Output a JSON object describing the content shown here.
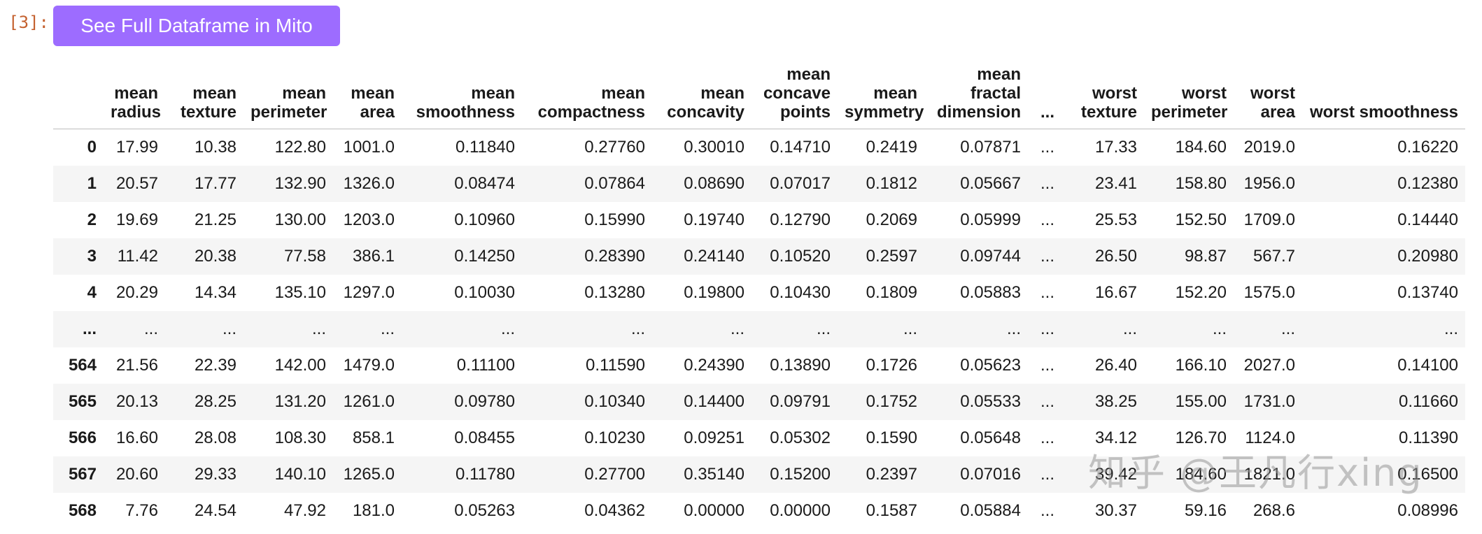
{
  "cell": {
    "prompt": "[3]:",
    "mito_button_label": "See Full Dataframe in Mito"
  },
  "dataframe": {
    "columns": [
      "",
      "mean radius",
      "mean texture",
      "mean perimeter",
      "mean area",
      "mean smoothness",
      "mean compactness",
      "mean concavity",
      "mean concave points",
      "mean symmetry",
      "mean fractal dimension",
      "...",
      "worst texture",
      "worst perimeter",
      "worst area",
      "worst smoothness"
    ],
    "rows": [
      [
        "0",
        "17.99",
        "10.38",
        "122.80",
        "1001.0",
        "0.11840",
        "0.27760",
        "0.30010",
        "0.14710",
        "0.2419",
        "0.07871",
        "...",
        "17.33",
        "184.60",
        "2019.0",
        "0.16220"
      ],
      [
        "1",
        "20.57",
        "17.77",
        "132.90",
        "1326.0",
        "0.08474",
        "0.07864",
        "0.08690",
        "0.07017",
        "0.1812",
        "0.05667",
        "...",
        "23.41",
        "158.80",
        "1956.0",
        "0.12380"
      ],
      [
        "2",
        "19.69",
        "21.25",
        "130.00",
        "1203.0",
        "0.10960",
        "0.15990",
        "0.19740",
        "0.12790",
        "0.2069",
        "0.05999",
        "...",
        "25.53",
        "152.50",
        "1709.0",
        "0.14440"
      ],
      [
        "3",
        "11.42",
        "20.38",
        "77.58",
        "386.1",
        "0.14250",
        "0.28390",
        "0.24140",
        "0.10520",
        "0.2597",
        "0.09744",
        "...",
        "26.50",
        "98.87",
        "567.7",
        "0.20980"
      ],
      [
        "4",
        "20.29",
        "14.34",
        "135.10",
        "1297.0",
        "0.10030",
        "0.13280",
        "0.19800",
        "0.10430",
        "0.1809",
        "0.05883",
        "...",
        "16.67",
        "152.20",
        "1575.0",
        "0.13740"
      ],
      [
        "...",
        "...",
        "...",
        "...",
        "...",
        "...",
        "...",
        "...",
        "...",
        "...",
        "...",
        "...",
        "...",
        "...",
        "...",
        "..."
      ],
      [
        "564",
        "21.56",
        "22.39",
        "142.00",
        "1479.0",
        "0.11100",
        "0.11590",
        "0.24390",
        "0.13890",
        "0.1726",
        "0.05623",
        "...",
        "26.40",
        "166.10",
        "2027.0",
        "0.14100"
      ],
      [
        "565",
        "20.13",
        "28.25",
        "131.20",
        "1261.0",
        "0.09780",
        "0.10340",
        "0.14400",
        "0.09791",
        "0.1752",
        "0.05533",
        "...",
        "38.25",
        "155.00",
        "1731.0",
        "0.11660"
      ],
      [
        "566",
        "16.60",
        "28.08",
        "108.30",
        "858.1",
        "0.08455",
        "0.10230",
        "0.09251",
        "0.05302",
        "0.1590",
        "0.05648",
        "...",
        "34.12",
        "126.70",
        "1124.0",
        "0.11390"
      ],
      [
        "567",
        "20.60",
        "29.33",
        "140.10",
        "1265.0",
        "0.11780",
        "0.27700",
        "0.35140",
        "0.15200",
        "0.2397",
        "0.07016",
        "...",
        "39.42",
        "184.60",
        "1821.0",
        "0.16500"
      ],
      [
        "568",
        "7.76",
        "24.54",
        "47.92",
        "181.0",
        "0.05263",
        "0.04362",
        "0.00000",
        "0.00000",
        "0.1587",
        "0.05884",
        "...",
        "30.37",
        "59.16",
        "268.6",
        "0.08996"
      ]
    ]
  },
  "watermark": "知乎 @王凡行xing"
}
